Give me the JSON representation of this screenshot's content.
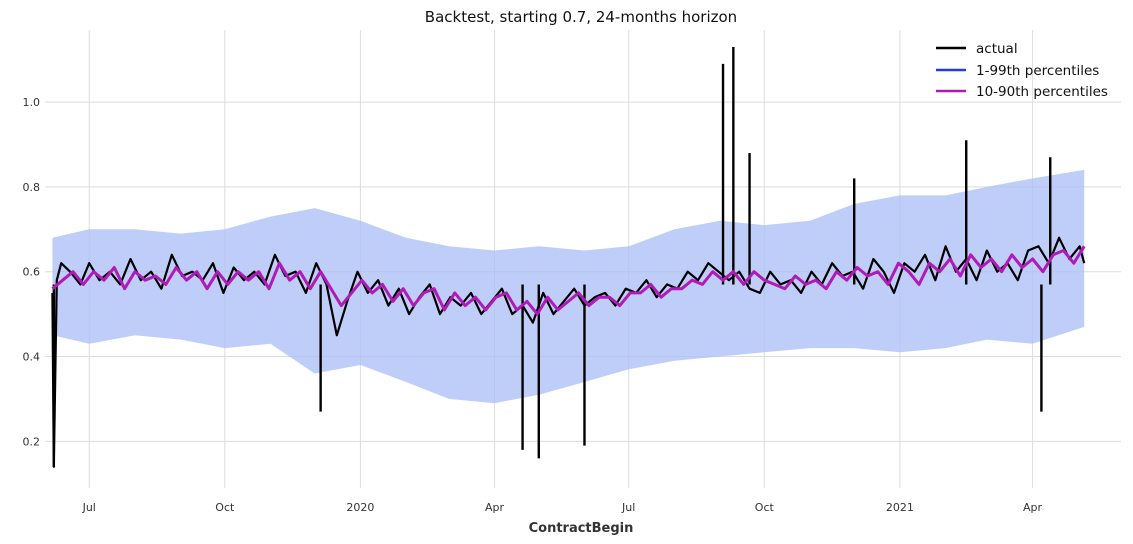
{
  "chart_data": {
    "type": "line",
    "title": "Backtest, starting 0.7, 24-months horizon",
    "xlabel": "ContractBegin",
    "ylabel": "",
    "x_range": [
      "2019-06-01",
      "2021-05-31"
    ],
    "ylim": [
      0.09,
      1.17
    ],
    "grid": true,
    "legend_position": "top-right",
    "x_ticks": [
      {
        "date": "2019-07-01",
        "label": "Jul"
      },
      {
        "date": "2019-10-01",
        "label": "Oct"
      },
      {
        "date": "2020-01-01",
        "label": "2020"
      },
      {
        "date": "2020-04-01",
        "label": "Apr"
      },
      {
        "date": "2020-07-01",
        "label": "Jul"
      },
      {
        "date": "2020-10-01",
        "label": "Oct"
      },
      {
        "date": "2021-01-01",
        "label": "2021"
      },
      {
        "date": "2021-04-01",
        "label": "Apr"
      }
    ],
    "y_ticks": [
      {
        "value": 0.2,
        "label": "0.2"
      },
      {
        "value": 0.4,
        "label": "0.4"
      },
      {
        "value": 0.6,
        "label": "0.6"
      },
      {
        "value": 0.8,
        "label": "0.8"
      },
      {
        "value": 1.0,
        "label": "1.0"
      }
    ],
    "series": [
      {
        "name": "actual",
        "color": "#000000",
        "x": [
          "2019-06-06",
          "2019-06-07",
          "2019-06-09",
          "2019-06-12",
          "2019-06-18",
          "2019-06-25",
          "2019-07-01",
          "2019-07-08",
          "2019-07-15",
          "2019-07-22",
          "2019-07-29",
          "2019-08-05",
          "2019-08-12",
          "2019-08-19",
          "2019-08-26",
          "2019-09-02",
          "2019-09-09",
          "2019-09-16",
          "2019-09-23",
          "2019-09-30",
          "2019-10-07",
          "2019-10-14",
          "2019-10-21",
          "2019-10-28",
          "2019-11-04",
          "2019-11-11",
          "2019-11-18",
          "2019-11-25",
          "2019-12-02",
          "2019-12-09",
          "2019-12-16",
          "2019-12-23",
          "2019-12-30",
          "2020-01-06",
          "2020-01-13",
          "2020-01-20",
          "2020-01-27",
          "2020-02-03",
          "2020-02-10",
          "2020-02-17",
          "2020-02-24",
          "2020-03-02",
          "2020-03-09",
          "2020-03-16",
          "2020-03-23",
          "2020-03-30",
          "2020-04-06",
          "2020-04-13",
          "2020-04-20",
          "2020-04-27",
          "2020-05-04",
          "2020-05-11",
          "2020-05-18",
          "2020-05-25",
          "2020-06-01",
          "2020-06-08",
          "2020-06-15",
          "2020-06-22",
          "2020-06-29",
          "2020-07-06",
          "2020-07-13",
          "2020-07-20",
          "2020-07-27",
          "2020-08-03",
          "2020-08-10",
          "2020-08-17",
          "2020-08-24",
          "2020-08-31",
          "2020-09-07",
          "2020-09-14",
          "2020-09-21",
          "2020-09-28",
          "2020-10-05",
          "2020-10-12",
          "2020-10-19",
          "2020-10-26",
          "2020-11-02",
          "2020-11-09",
          "2020-11-16",
          "2020-11-23",
          "2020-11-30",
          "2020-12-07",
          "2020-12-14",
          "2020-12-21",
          "2020-12-28",
          "2021-01-04",
          "2021-01-11",
          "2021-01-18",
          "2021-01-25",
          "2021-02-01",
          "2021-02-08",
          "2021-02-15",
          "2021-02-22",
          "2021-03-01",
          "2021-03-08",
          "2021-03-15",
          "2021-03-22",
          "2021-03-29",
          "2021-04-05",
          "2021-04-12",
          "2021-04-19",
          "2021-04-26",
          "2021-05-03",
          "2021-05-06"
        ],
        "values": [
          0.55,
          0.14,
          0.58,
          0.62,
          0.6,
          0.57,
          0.62,
          0.58,
          0.6,
          0.57,
          0.63,
          0.58,
          0.6,
          0.56,
          0.64,
          0.59,
          0.6,
          0.58,
          0.62,
          0.55,
          0.61,
          0.58,
          0.6,
          0.57,
          0.64,
          0.59,
          0.6,
          0.55,
          0.62,
          0.57,
          0.45,
          0.53,
          0.6,
          0.55,
          0.58,
          0.52,
          0.56,
          0.5,
          0.54,
          0.57,
          0.5,
          0.54,
          0.52,
          0.55,
          0.5,
          0.53,
          0.56,
          0.5,
          0.52,
          0.48,
          0.55,
          0.5,
          0.53,
          0.56,
          0.52,
          0.54,
          0.55,
          0.52,
          0.56,
          0.55,
          0.58,
          0.54,
          0.57,
          0.56,
          0.6,
          0.58,
          0.62,
          0.6,
          0.58,
          0.6,
          0.56,
          0.55,
          0.6,
          0.57,
          0.58,
          0.55,
          0.6,
          0.57,
          0.62,
          0.59,
          0.6,
          0.56,
          0.63,
          0.6,
          0.55,
          0.62,
          0.6,
          0.64,
          0.58,
          0.66,
          0.6,
          0.63,
          0.58,
          0.65,
          0.6,
          0.62,
          0.58,
          0.65,
          0.66,
          0.62,
          0.68,
          0.63,
          0.66,
          0.62
        ]
      },
      {
        "name": "1-99th percentiles",
        "color": "#1f3fdd",
        "band_color": "#a9bdf7",
        "x": [
          "2019-06-06",
          "2019-07-01",
          "2019-08-01",
          "2019-09-01",
          "2019-10-01",
          "2019-11-01",
          "2019-12-01",
          "2020-01-01",
          "2020-02-01",
          "2020-03-01",
          "2020-04-01",
          "2020-05-01",
          "2020-06-01",
          "2020-07-01",
          "2020-08-01",
          "2020-09-01",
          "2020-10-01",
          "2020-11-01",
          "2020-12-01",
          "2021-01-01",
          "2021-02-01",
          "2021-03-01",
          "2021-04-01",
          "2021-05-06"
        ],
        "lower": [
          0.45,
          0.43,
          0.45,
          0.44,
          0.42,
          0.43,
          0.36,
          0.38,
          0.34,
          0.3,
          0.29,
          0.31,
          0.34,
          0.37,
          0.39,
          0.4,
          0.41,
          0.42,
          0.42,
          0.41,
          0.42,
          0.44,
          0.43,
          0.47
        ],
        "upper": [
          0.68,
          0.7,
          0.7,
          0.69,
          0.7,
          0.73,
          0.75,
          0.72,
          0.68,
          0.66,
          0.65,
          0.66,
          0.65,
          0.66,
          0.7,
          0.72,
          0.71,
          0.72,
          0.76,
          0.78,
          0.78,
          0.8,
          0.82,
          0.84
        ]
      },
      {
        "name": "10-90th percentiles",
        "color": "#b01bb8",
        "x": [
          "2019-06-06",
          "2019-06-13",
          "2019-06-20",
          "2019-06-27",
          "2019-07-04",
          "2019-07-11",
          "2019-07-18",
          "2019-07-25",
          "2019-08-01",
          "2019-08-08",
          "2019-08-15",
          "2019-08-22",
          "2019-08-29",
          "2019-09-05",
          "2019-09-12",
          "2019-09-19",
          "2019-09-26",
          "2019-10-03",
          "2019-10-10",
          "2019-10-17",
          "2019-10-24",
          "2019-10-31",
          "2019-11-07",
          "2019-11-14",
          "2019-11-21",
          "2019-11-28",
          "2019-12-05",
          "2019-12-12",
          "2019-12-19",
          "2019-12-26",
          "2020-01-02",
          "2020-01-09",
          "2020-01-16",
          "2020-01-23",
          "2020-01-30",
          "2020-02-06",
          "2020-02-13",
          "2020-02-20",
          "2020-02-27",
          "2020-03-05",
          "2020-03-12",
          "2020-03-19",
          "2020-03-26",
          "2020-04-02",
          "2020-04-09",
          "2020-04-16",
          "2020-04-23",
          "2020-04-30",
          "2020-05-07",
          "2020-05-14",
          "2020-05-21",
          "2020-05-28",
          "2020-06-04",
          "2020-06-11",
          "2020-06-18",
          "2020-06-25",
          "2020-07-02",
          "2020-07-09",
          "2020-07-16",
          "2020-07-23",
          "2020-07-30",
          "2020-08-06",
          "2020-08-13",
          "2020-08-20",
          "2020-08-27",
          "2020-09-03",
          "2020-09-10",
          "2020-09-17",
          "2020-09-24",
          "2020-10-01",
          "2020-10-08",
          "2020-10-15",
          "2020-10-22",
          "2020-10-29",
          "2020-11-05",
          "2020-11-12",
          "2020-11-19",
          "2020-11-26",
          "2020-12-03",
          "2020-12-10",
          "2020-12-17",
          "2020-12-24",
          "2020-12-31",
          "2021-01-07",
          "2021-01-14",
          "2021-01-21",
          "2021-01-28",
          "2021-02-04",
          "2021-02-11",
          "2021-02-18",
          "2021-02-25",
          "2021-03-04",
          "2021-03-11",
          "2021-03-18",
          "2021-03-25",
          "2021-04-01",
          "2021-04-08",
          "2021-04-15",
          "2021-04-22",
          "2021-04-29",
          "2021-05-06"
        ],
        "values": [
          0.56,
          0.58,
          0.6,
          0.57,
          0.6,
          0.58,
          0.61,
          0.56,
          0.6,
          0.58,
          0.59,
          0.57,
          0.61,
          0.58,
          0.6,
          0.56,
          0.6,
          0.57,
          0.6,
          0.58,
          0.6,
          0.56,
          0.62,
          0.58,
          0.6,
          0.56,
          0.6,
          0.56,
          0.52,
          0.55,
          0.58,
          0.55,
          0.57,
          0.53,
          0.56,
          0.52,
          0.55,
          0.56,
          0.51,
          0.55,
          0.52,
          0.54,
          0.51,
          0.54,
          0.55,
          0.51,
          0.53,
          0.5,
          0.54,
          0.51,
          0.53,
          0.55,
          0.52,
          0.54,
          0.54,
          0.52,
          0.55,
          0.55,
          0.57,
          0.54,
          0.56,
          0.56,
          0.58,
          0.57,
          0.6,
          0.58,
          0.6,
          0.57,
          0.6,
          0.58,
          0.57,
          0.56,
          0.59,
          0.57,
          0.58,
          0.56,
          0.6,
          0.58,
          0.61,
          0.59,
          0.6,
          0.57,
          0.62,
          0.6,
          0.57,
          0.62,
          0.6,
          0.63,
          0.59,
          0.64,
          0.61,
          0.63,
          0.6,
          0.64,
          0.61,
          0.63,
          0.6,
          0.64,
          0.65,
          0.62,
          0.66
        ]
      }
    ],
    "spikes": [
      {
        "date": "2019-06-07",
        "value": 0.14
      },
      {
        "date": "2019-12-05",
        "value": 0.27
      },
      {
        "date": "2020-04-20",
        "value": 0.18
      },
      {
        "date": "2020-05-01",
        "value": 0.16
      },
      {
        "date": "2020-06-01",
        "value": 0.19
      },
      {
        "date": "2020-09-03",
        "value": 1.09
      },
      {
        "date": "2020-09-10",
        "value": 1.13
      },
      {
        "date": "2020-09-21",
        "value": 0.88
      },
      {
        "date": "2020-12-01",
        "value": 0.82
      },
      {
        "date": "2021-02-15",
        "value": 0.91
      },
      {
        "date": "2021-04-07",
        "value": 0.27
      },
      {
        "date": "2021-04-13",
        "value": 0.87
      }
    ]
  }
}
